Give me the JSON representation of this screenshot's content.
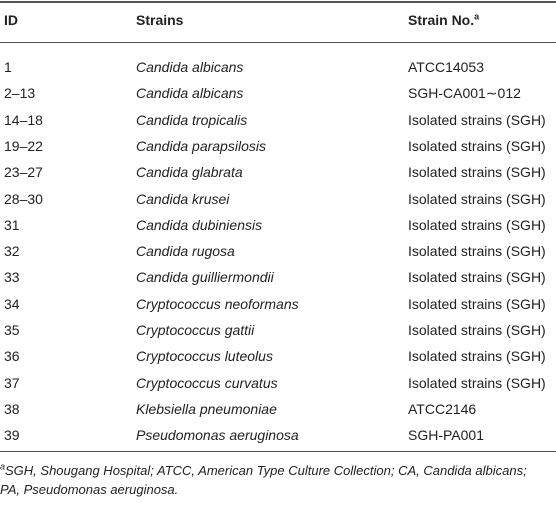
{
  "table": {
    "header": [
      "ID",
      "Strains",
      "Strain No."
    ],
    "header_note_mark": "a",
    "rows": [
      [
        "1",
        "Candida albicans",
        "ATCC14053"
      ],
      [
        "2–13",
        "Candida albicans",
        "SGH-CA001∼012"
      ],
      [
        "14–18",
        "Candida tropicalis",
        "Isolated strains (SGH)"
      ],
      [
        "19–22",
        "Candida parapsilosis",
        "Isolated strains (SGH)"
      ],
      [
        "23–27",
        "Candida glabrata",
        "Isolated strains (SGH)"
      ],
      [
        "28–30",
        "Candida krusei",
        "Isolated strains (SGH)"
      ],
      [
        "31",
        "Candida dubiniensis",
        "Isolated strains (SGH)"
      ],
      [
        "32",
        "Candida rugosa",
        "Isolated strains (SGH)"
      ],
      [
        "33",
        "Candida guilliermondii",
        "Isolated strains (SGH)"
      ],
      [
        "34",
        "Cryptococcus neoformans",
        "Isolated strains (SGH)"
      ],
      [
        "35",
        "Cryptococcus gattii",
        "Isolated strains (SGH)"
      ],
      [
        "36",
        "Cryptococcus luteolus",
        "Isolated strains (SGH)"
      ],
      [
        "37",
        "Cryptococcus curvatus",
        "Isolated strains (SGH)"
      ],
      [
        "38",
        "Klebsiella pneumoniae",
        "ATCC2146"
      ],
      [
        "39",
        "Pseudomonas aeruginosa",
        "SGH-PA001"
      ]
    ]
  },
  "footnote": {
    "mark": "a",
    "text": "SGH, Shougang Hospital; ATCC, American Type Culture Collection; CA, Candida albicans; PA, Pseudomonas aeruginosa."
  }
}
